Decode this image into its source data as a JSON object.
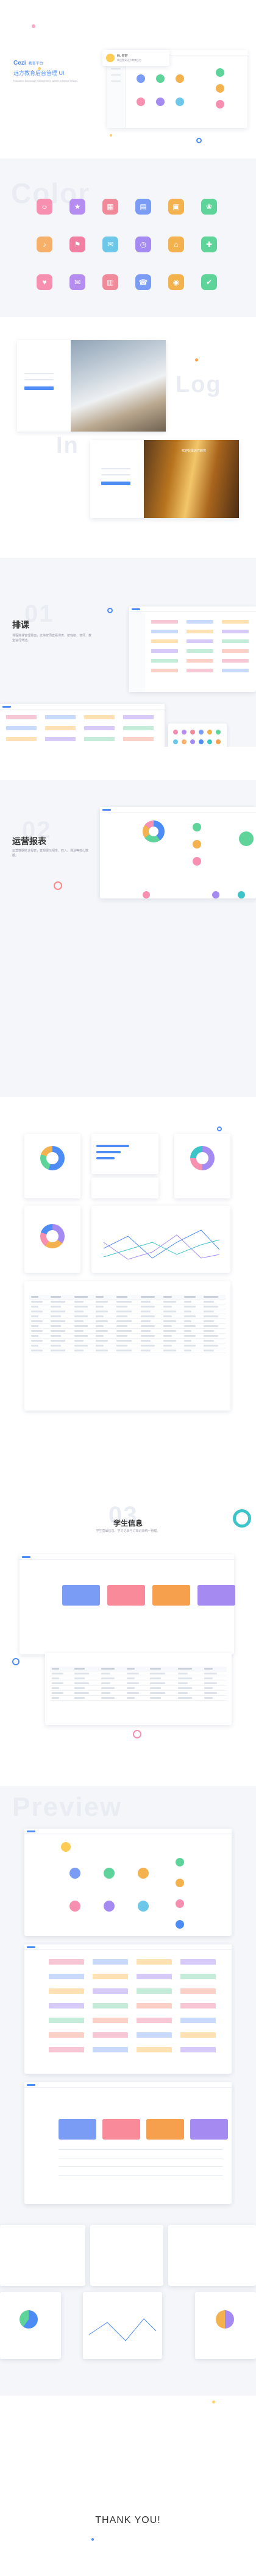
{
  "hero": {
    "brand": "Cezi",
    "brand_sub": "教育平台",
    "title": "远方教育后台管理 UI",
    "desc": "Education backstage management system interface design.",
    "greeting": "Hi, 你好",
    "greeting_sub": "欢迎登录远方教育后台"
  },
  "color_section": {
    "ghost": "Color",
    "icons": [
      {
        "name": "user-icon",
        "glyph": "☺",
        "color": "#f78fb0"
      },
      {
        "name": "star-icon",
        "glyph": "★",
        "color": "#b58cf0"
      },
      {
        "name": "chart-icon",
        "glyph": "▦",
        "color": "#f08a9a"
      },
      {
        "name": "book-icon",
        "glyph": "▤",
        "color": "#7a9cf5"
      },
      {
        "name": "calendar-icon",
        "glyph": "▣",
        "color": "#f3b24e"
      },
      {
        "name": "leaf-icon",
        "glyph": "❀",
        "color": "#5fd49a"
      },
      {
        "name": "bell-icon",
        "glyph": "♪",
        "color": "#f7b06a"
      },
      {
        "name": "flag-icon",
        "glyph": "⚑",
        "color": "#f07fa2"
      },
      {
        "name": "gift-icon",
        "glyph": "✉",
        "color": "#6cc7e8"
      },
      {
        "name": "clock-icon",
        "glyph": "◷",
        "color": "#a58af2"
      },
      {
        "name": "home-icon",
        "glyph": "⌂",
        "color": "#f3b24e"
      },
      {
        "name": "pin-icon",
        "glyph": "✚",
        "color": "#5fd49a"
      },
      {
        "name": "heart-icon",
        "glyph": "♥",
        "color": "#f78fb0"
      },
      {
        "name": "mail-icon",
        "glyph": "✉",
        "color": "#b58cf0"
      },
      {
        "name": "doc-icon",
        "glyph": "▥",
        "color": "#f08a9a"
      },
      {
        "name": "phone-icon",
        "glyph": "☎",
        "color": "#7a9cf5"
      },
      {
        "name": "camera-icon",
        "glyph": "◉",
        "color": "#f3b24e"
      },
      {
        "name": "check-icon",
        "glyph": "✔",
        "color": "#5fd49a"
      }
    ]
  },
  "login_section": {
    "ghost_log": "Log",
    "ghost_in": "In",
    "caption": "欢迎登录远方教育"
  },
  "schedule_section": {
    "number": "01",
    "title": "排课",
    "desc": "课程排课管理界面，支持按周查看课表，按班级、老师、教室进行筛选。"
  },
  "report_section": {
    "number": "02",
    "title": "运营报表",
    "desc": "运营数据统计报表，直观展示招生、收入、课消等核心数据。"
  },
  "student_section": {
    "number": "03",
    "title": "学生信息",
    "desc": "学生基础信息，学习记录与订单记录统一管理。"
  },
  "preview_section": {
    "ghost": "Preview"
  },
  "footer": {
    "thanks": "THANK YOU!"
  },
  "colors": {
    "brand_blue": "#4d8cf5",
    "teal": "#3cc4c8",
    "pink": "#f78fb0",
    "orange": "#f6a04d",
    "purple": "#a58af2"
  }
}
